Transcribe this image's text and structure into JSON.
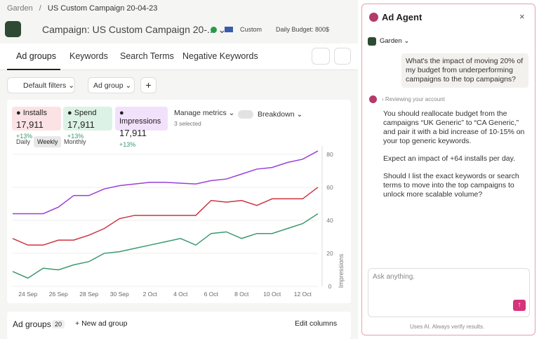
{
  "breadcrumb": {
    "root": "Garden",
    "separator": "/",
    "current": "US Custom Campaign 20-04-23"
  },
  "header": {
    "label": "Campaign:",
    "campaign": "US Custom Campaign 20-...",
    "custom": "Custom",
    "budget": "Daily Budget: 800$"
  },
  "tabs": [
    "Ad groups",
    "Keywords",
    "Search Terms",
    "Negative Keywords"
  ],
  "filters": [
    "Default filters",
    "Ad group"
  ],
  "metrics": [
    {
      "name": "Installs",
      "value": "17,911",
      "delta": "+13%"
    },
    {
      "name": "Spend",
      "value": "17,911",
      "delta": "+13%"
    },
    {
      "name": "Impressions",
      "value": "17,911",
      "delta": "+13%"
    }
  ],
  "manage": {
    "label": "Manage metrics",
    "selected": "3 selected",
    "breakdown": "Breakdown"
  },
  "periods": [
    "Daily",
    "Weekly",
    "Monthly"
  ],
  "chart": {
    "type": "line",
    "y_label": "Impressions",
    "categories": [
      null,
      "24 Sep",
      null,
      "26 Sep",
      null,
      "28 Sep",
      null,
      "30 Sep",
      null,
      "2 Oct",
      null,
      "4 Oct",
      null,
      "6 Oct",
      null,
      "8 Oct",
      null,
      "10 Oct",
      null,
      "12 Oct",
      null
    ],
    "series": [
      {
        "name": "Impressions",
        "color": "#9b3fd8",
        "values": [
          44,
          44,
          44,
          48,
          55,
          55,
          59,
          61,
          62,
          63,
          63,
          62.5,
          62,
          64,
          65,
          68,
          71,
          72,
          75,
          77,
          82
        ]
      },
      {
        "name": "Installs",
        "color": "#cc3340",
        "values": [
          29,
          25,
          25,
          28,
          28,
          31,
          35,
          41,
          43,
          43,
          43,
          43,
          43,
          52,
          51,
          52,
          49,
          53,
          53,
          53,
          60
        ]
      },
      {
        "name": "Spend",
        "color": "#3a9a6e",
        "values": [
          9,
          5,
          11,
          10,
          13,
          15,
          20,
          21,
          23,
          25,
          27,
          29,
          25,
          32,
          33,
          29,
          32,
          32,
          35,
          38,
          44
        ]
      }
    ],
    "ylim": [
      0,
      85
    ],
    "yticks": [
      0,
      20,
      40,
      60,
      80
    ],
    "grid": true
  },
  "table": {
    "title": "Ad groups",
    "count": "20",
    "new": "New ad group",
    "edit": "Edit columns"
  },
  "agent": {
    "title": "Ad Agent",
    "account": "Garden",
    "user_message": "What's the impact of moving 20% of my budget from underperforming campaigns to the top campaigns?",
    "status": "Reviewing your account",
    "response": [
      "You should reallocate budget from the campaigns “UK Generic” to “CA Generic,” and pair it with a bid increase of 10-15% on your top generic keywords.",
      "Expect an impact of +64 installs per day.",
      "Should I list the exact keywords or search terms to move into the top campaigns to unlock more scalable volume?"
    ],
    "placeholder": "Ask anything.",
    "footer": "Uses AI. Always verify results."
  }
}
